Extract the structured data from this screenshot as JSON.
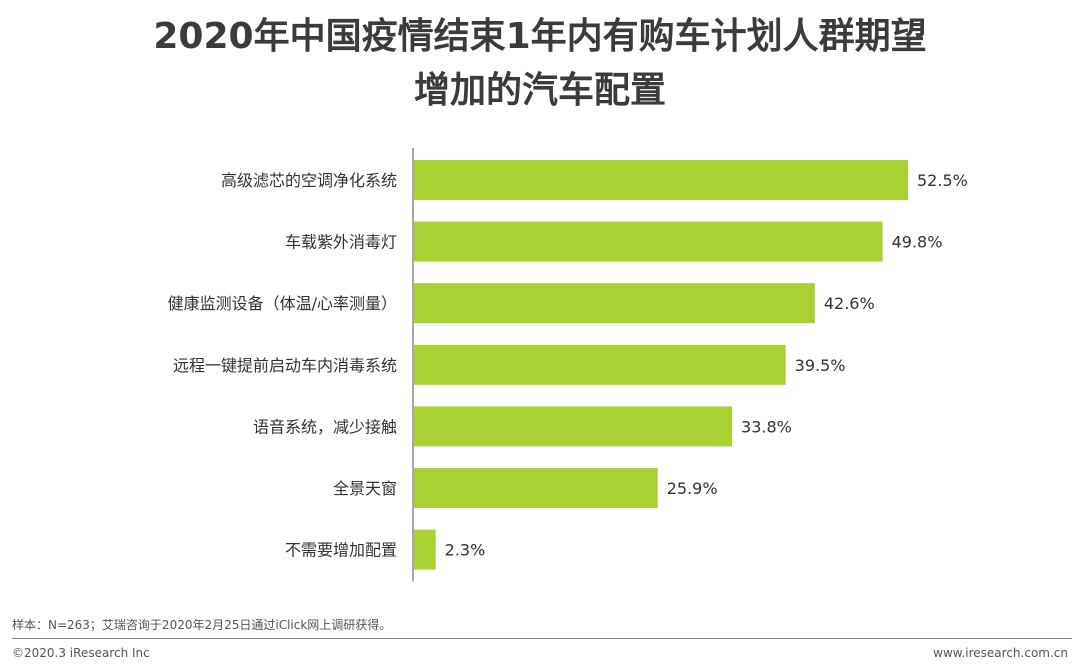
{
  "chart_data": {
    "type": "bar",
    "orientation": "horizontal",
    "title_lines": [
      "2020年中国疫情结束1年内有购车计划人群期望",
      "增加的汽车配置"
    ],
    "categories": [
      "高级滤芯的空调净化系统",
      "车载紫外消毒灯",
      "健康监测设备（体温/心率测量）",
      "远程一键提前启动车内消毒系统",
      "语音系统，减少接触",
      "全景天窗",
      "不需要增加配置"
    ],
    "values": [
      52.5,
      49.8,
      42.6,
      39.5,
      33.8,
      25.9,
      2.3
    ],
    "value_labels": [
      "52.5%",
      "49.8%",
      "42.6%",
      "39.5%",
      "33.8%",
      "25.9%",
      "2.3%"
    ],
    "unit": "%",
    "bar_color": "#a9d134",
    "axis_color": "#8c8c8c",
    "grid": false
  },
  "footer": {
    "note": "样本：N=263；艾瑞咨询于2020年2月25日通过iClick网上调研获得。",
    "copyright": "©2020.3 iResearch Inc",
    "website": "www.iresearch.com.cn"
  }
}
